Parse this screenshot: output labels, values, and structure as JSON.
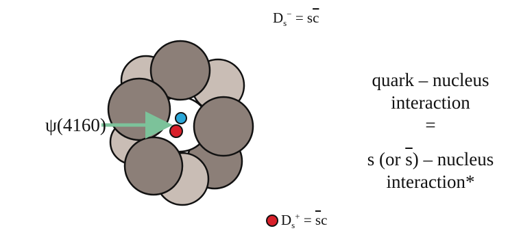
{
  "dm_label": {
    "symbol": "D",
    "sub": "s",
    "sup": "−",
    "eq": " = s",
    "bar": "c"
  },
  "psi_label": "ψ(4160)",
  "statement": {
    "line1": "quark – nucleus",
    "line2": "interaction",
    "line3": "=",
    "line4_pre": "s (or ",
    "line4_bar": "s",
    "line4_post": ") – nucleus",
    "line5": "interaction*"
  },
  "dp_label": {
    "symbol": "D",
    "sub": "s",
    "sup": "+",
    "eq": " = ",
    "bar": "s",
    "rest": "c"
  }
}
